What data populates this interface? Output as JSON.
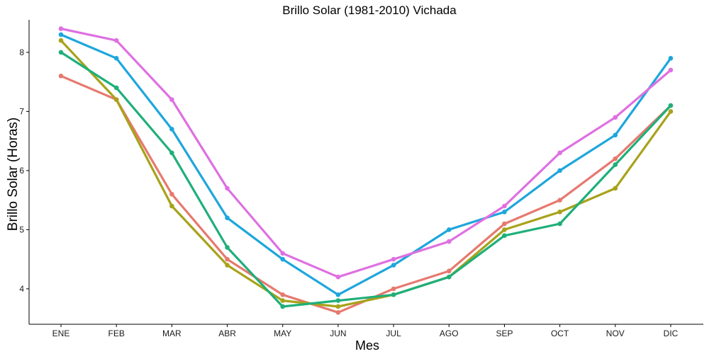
{
  "chart_data": {
    "type": "line",
    "title": "Brillo Solar (1981-2010)  Vichada",
    "xlabel": "Mes",
    "ylabel": "Brillo Solar (Horas)",
    "categories": [
      "ENE",
      "FEB",
      "MAR",
      "ABR",
      "MAY",
      "JUN",
      "JUL",
      "AGO",
      "SEP",
      "OCT",
      "NOV",
      "DIC"
    ],
    "yticks": [
      4,
      5,
      6,
      7,
      8
    ],
    "ylim": [
      3.4,
      8.55
    ],
    "grid": false,
    "legend": "none",
    "series": [
      {
        "color": "#E6796F",
        "values": [
          7.6,
          7.2,
          5.6,
          4.5,
          3.9,
          3.6,
          4.0,
          4.3,
          5.1,
          5.5,
          6.2,
          7.1
        ]
      },
      {
        "color": "#A8A21A",
        "values": [
          8.2,
          7.2,
          5.4,
          4.4,
          3.8,
          3.7,
          3.9,
          4.2,
          5.0,
          5.3,
          5.7,
          7.0
        ]
      },
      {
        "color": "#1FAF7A",
        "values": [
          8.0,
          7.4,
          6.3,
          4.7,
          3.7,
          3.8,
          3.9,
          4.2,
          4.9,
          5.1,
          6.1,
          7.1
        ]
      },
      {
        "color": "#1EA6DC",
        "values": [
          8.3,
          7.9,
          6.7,
          5.2,
          4.5,
          3.9,
          4.4,
          5.0,
          5.3,
          6.0,
          6.6,
          7.9
        ]
      },
      {
        "color": "#DE70E1",
        "values": [
          8.4,
          8.2,
          7.2,
          5.7,
          4.6,
          4.2,
          4.5,
          4.8,
          5.4,
          6.3,
          6.9,
          7.7
        ]
      }
    ]
  }
}
